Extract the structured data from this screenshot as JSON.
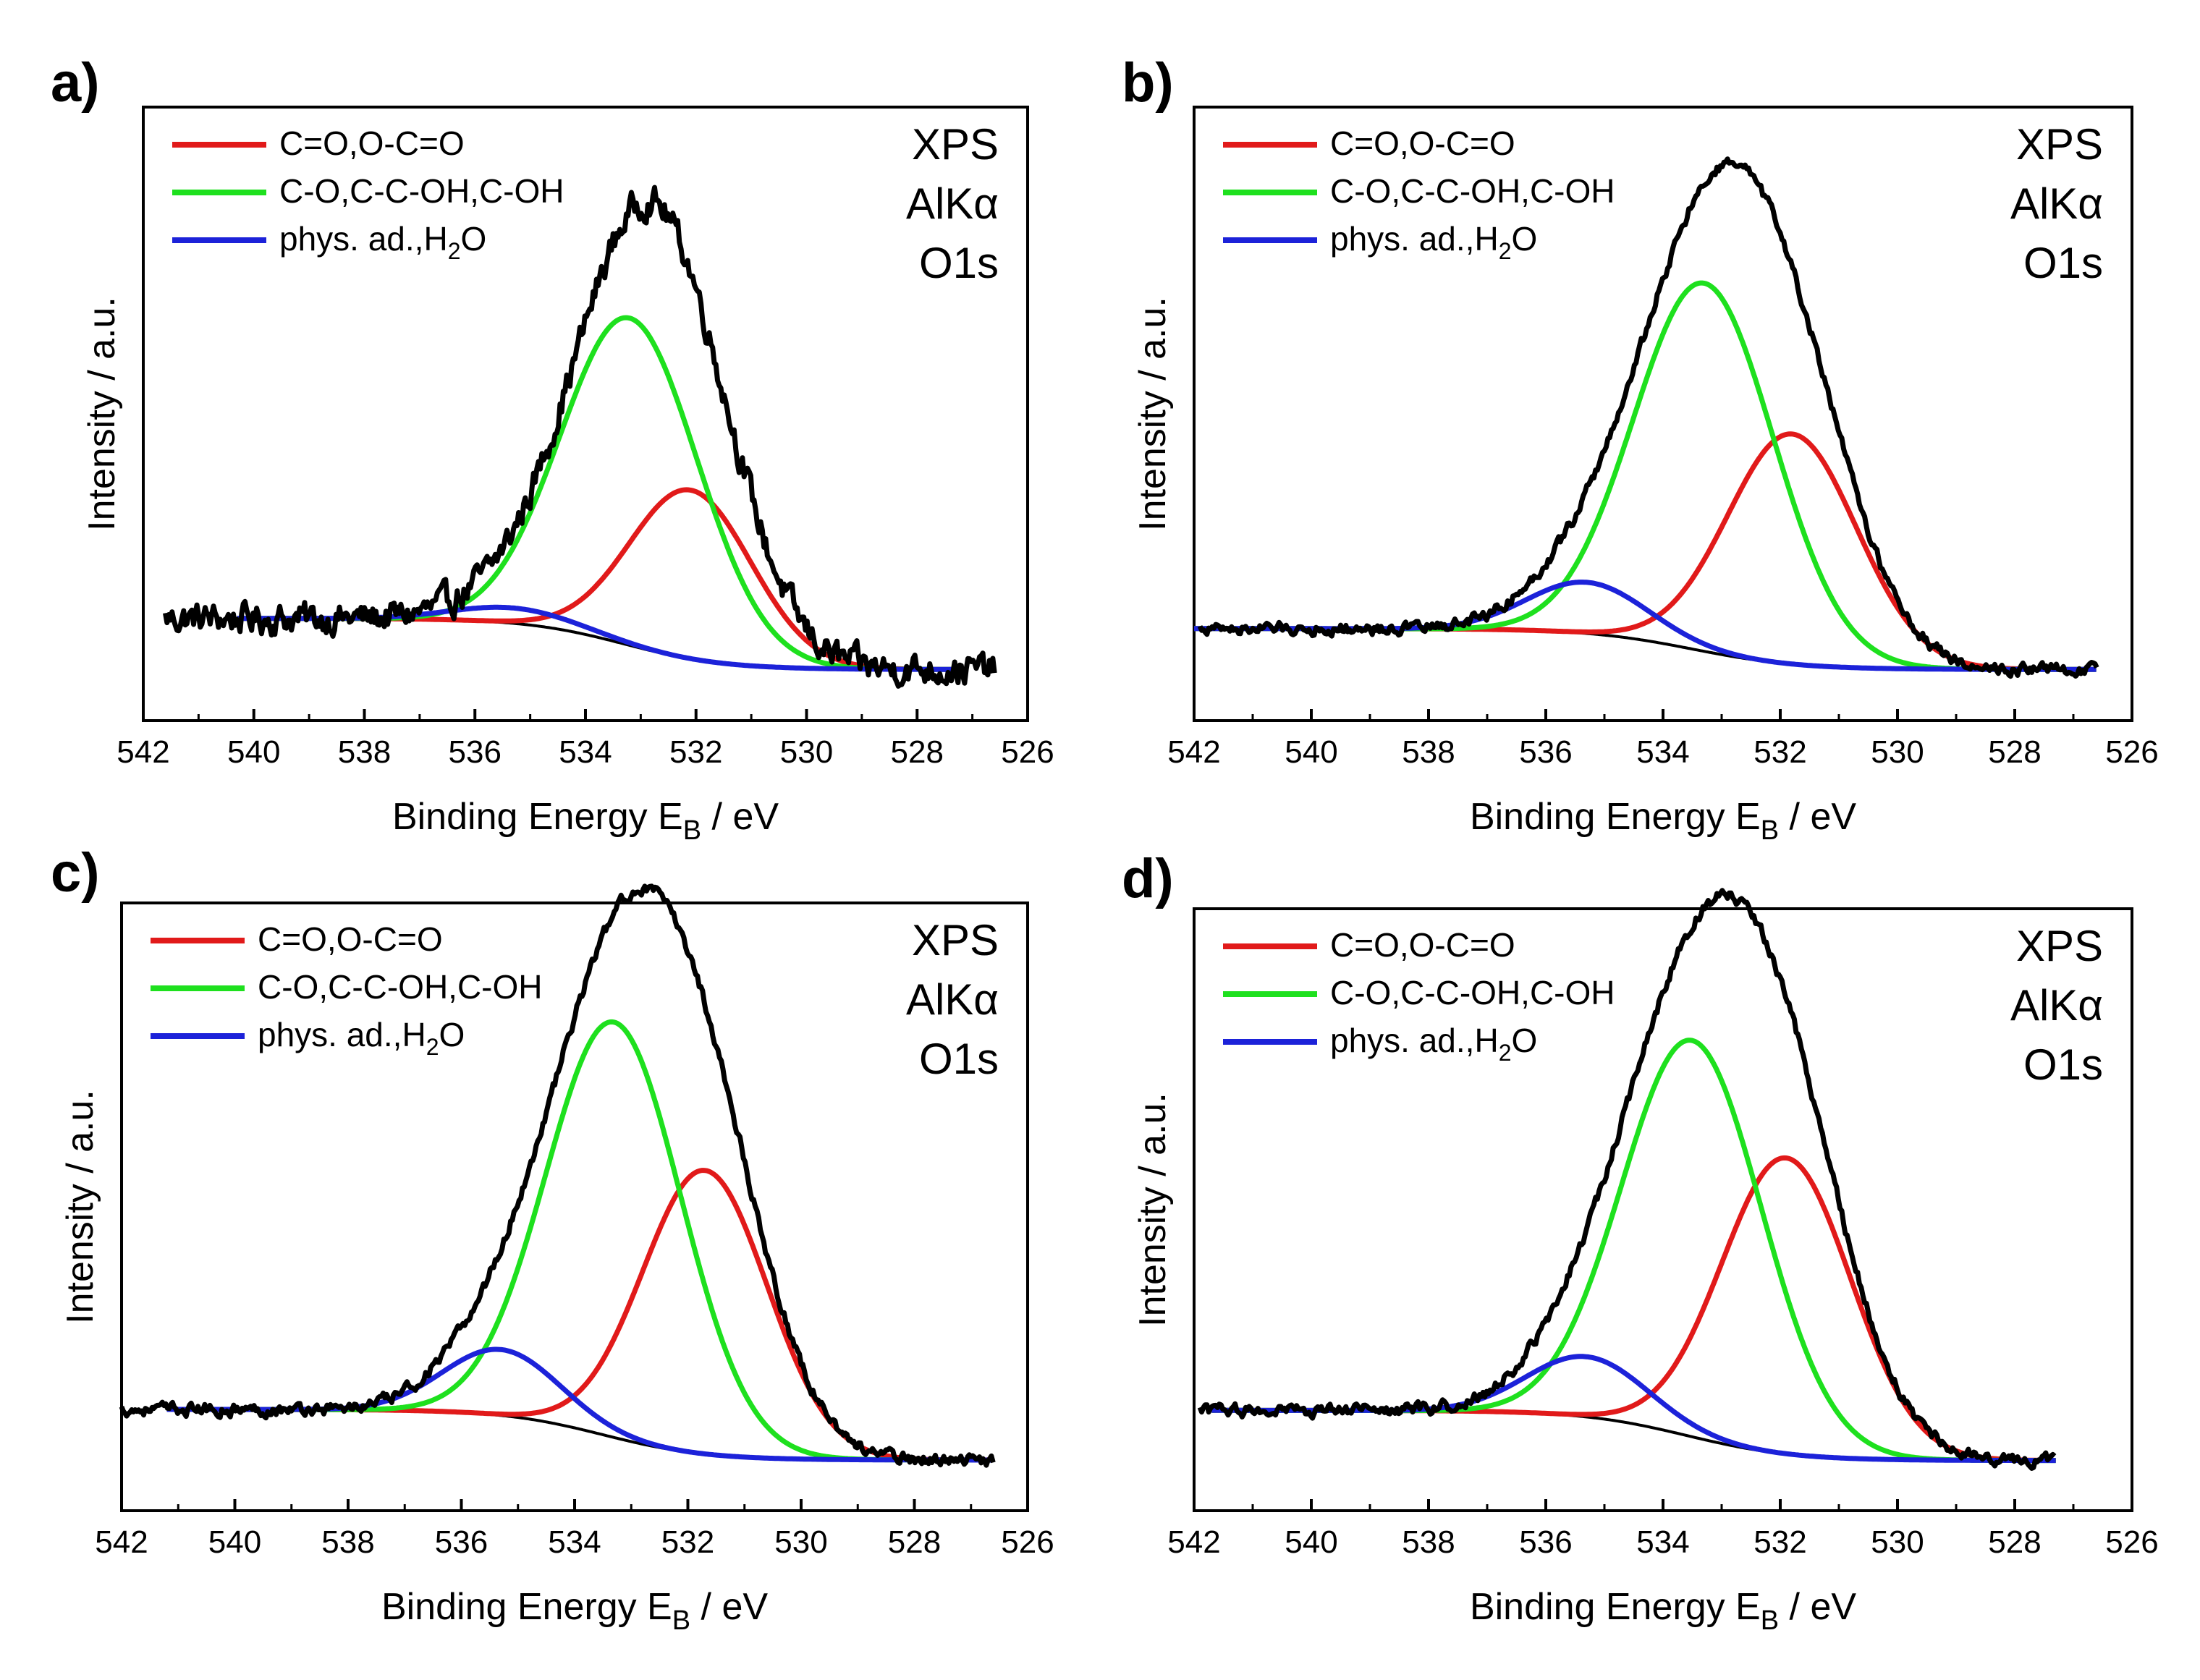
{
  "figure": {
    "xaxis_sub": "B",
    "colors": {
      "envelope": "#000000",
      "co_carbonyl": "#e11a1a",
      "co_hydroxyl": "#1ee01e",
      "water": "#1c22d9",
      "background": "#000000",
      "axes": "#000000"
    }
  },
  "chart_data": [
    {
      "panel": "a)",
      "type": "line",
      "xlabel_prefix": "Binding Energy E",
      "xlabel_suffix": " / eV",
      "ylabel": "Intensity / a.u.",
      "xlim": [
        542,
        526
      ],
      "xticks": [
        "542",
        "540",
        "538",
        "536",
        "534",
        "532",
        "530",
        "528",
        "526"
      ],
      "info_lines": [
        "XPS",
        "AlKα",
        "O1s"
      ],
      "legend": [
        {
          "name": "C=O,O-C=O",
          "color_key": "co_carbonyl"
        },
        {
          "name": "C-O,C-C-OH,C-OH",
          "color_key": "co_hydroxyl"
        },
        {
          "name_main": "phys. ad.,H",
          "name_sub": "2",
          "name_tail": "O",
          "color_key": "water"
        }
      ],
      "series": [
        {
          "name": "C=O,O-C=O",
          "center_eV": 532.1,
          "height": 0.33,
          "fwhm_eV": 2.6
        },
        {
          "name": "C-O,C-C-OH,C-OH",
          "center_eV": 533.2,
          "height": 0.64,
          "fwhm_eV": 2.9
        },
        {
          "name": "phys. ad.,H2O",
          "center_eV": 535.3,
          "height": 0.03,
          "fwhm_eV": 2.6
        }
      ],
      "background_curve": {
        "high_side_level": 0.1,
        "low_side_level": 0.0,
        "step_center_eV": 533.3
      },
      "data_range_eV": [
        541.6,
        526.6
      ],
      "fit_range_eV": [
        540.3,
        527.1
      ],
      "noise_level": 0.03,
      "ylim": [
        -0.1,
        1.1
      ]
    },
    {
      "panel": "b)",
      "type": "line",
      "xlabel_prefix": "Binding Energy E",
      "xlabel_suffix": " / eV",
      "ylabel": "Intensity / a.u.",
      "xlim": [
        542,
        526
      ],
      "xticks": [
        "542",
        "540",
        "538",
        "536",
        "534",
        "532",
        "530",
        "528",
        "526"
      ],
      "info_lines": [
        "XPS",
        "AlKα",
        "O1s"
      ],
      "legend": [
        {
          "name": "C=O,O-C=O",
          "color_key": "co_carbonyl"
        },
        {
          "name": "C-O,C-C-OH,C-OH",
          "color_key": "co_hydroxyl"
        },
        {
          "name_main": "phys. ad.,H",
          "name_sub": "2",
          "name_tail": "O",
          "color_key": "water"
        }
      ],
      "series": [
        {
          "name": "C=O,O-C=O",
          "center_eV": 531.8,
          "height": 0.45,
          "fwhm_eV": 2.6
        },
        {
          "name": "C-O,C-C-OH,C-OH",
          "center_eV": 533.3,
          "height": 0.72,
          "fwhm_eV": 2.8
        },
        {
          "name": "phys. ad.,H2O",
          "center_eV": 535.3,
          "height": 0.1,
          "fwhm_eV": 2.4
        }
      ],
      "background_curve": {
        "high_side_level": 0.08,
        "low_side_level": 0.0,
        "step_center_eV": 533.5
      },
      "data_range_eV": [
        541.9,
        526.6
      ],
      "fit_range_eV": [
        542.0,
        526.6
      ],
      "noise_level": 0.012,
      "ylim": [
        -0.1,
        1.1
      ]
    },
    {
      "panel": "c)",
      "type": "line",
      "xlabel_prefix": "Binding Energy E",
      "xlabel_suffix": " / eV",
      "ylabel": "Intensity / a.u.",
      "xlim": [
        542,
        526
      ],
      "xticks": [
        "542",
        "540",
        "538",
        "536",
        "534",
        "532",
        "530",
        "528",
        "526"
      ],
      "info_lines": [
        "XPS",
        "AlKα",
        "O1s"
      ],
      "legend": [
        {
          "name": "C=O,O-C=O",
          "color_key": "co_carbonyl"
        },
        {
          "name": "C-O,C-C-OH,C-OH",
          "color_key": "co_hydroxyl"
        },
        {
          "name_main": "phys. ad.,H",
          "name_sub": "2",
          "name_tail": "O",
          "color_key": "water"
        }
      ],
      "series": [
        {
          "name": "C=O,O-C=O",
          "center_eV": 531.7,
          "height": 0.56,
          "fwhm_eV": 2.6
        },
        {
          "name": "C-O,C-C-OH,C-OH",
          "center_eV": 533.3,
          "height": 0.82,
          "fwhm_eV": 2.8
        },
        {
          "name": "phys. ad.,H2O",
          "center_eV": 535.3,
          "height": 0.13,
          "fwhm_eV": 2.4
        }
      ],
      "background_curve": {
        "high_side_level": 0.1,
        "low_side_level": 0.0,
        "step_center_eV": 533.5
      },
      "data_range_eV": [
        542.0,
        526.6
      ],
      "fit_range_eV": [
        541.2,
        526.6
      ],
      "noise_level": 0.012,
      "ylim": [
        -0.1,
        1.1
      ]
    },
    {
      "panel": "d)",
      "type": "line",
      "xlabel_prefix": "Binding Energy E",
      "xlabel_suffix": " / eV",
      "ylabel": "Intensity / a.u.",
      "xlim": [
        542,
        526
      ],
      "xticks": [
        "542",
        "540",
        "538",
        "536",
        "534",
        "532",
        "530",
        "528",
        "526"
      ],
      "info_lines": [
        "XPS",
        "AlKα",
        "O1s"
      ],
      "legend": [
        {
          "name": "C=O,O-C=O",
          "color_key": "co_carbonyl"
        },
        {
          "name": "C-O,C-C-OH,C-OH",
          "color_key": "co_hydroxyl"
        },
        {
          "name_main": "phys. ad.,H",
          "name_sub": "2",
          "name_tail": "O",
          "color_key": "water"
        }
      ],
      "series": [
        {
          "name": "C=O,O-C=O",
          "center_eV": 531.9,
          "height": 0.59,
          "fwhm_eV": 2.6
        },
        {
          "name": "C-O,C-C-OH,C-OH",
          "center_eV": 533.5,
          "height": 0.79,
          "fwhm_eV": 2.8
        },
        {
          "name": "phys. ad.,H2O",
          "center_eV": 535.3,
          "height": 0.12,
          "fwhm_eV": 2.4
        }
      ],
      "background_curve": {
        "high_side_level": 0.1,
        "low_side_level": 0.0,
        "step_center_eV": 533.6
      },
      "data_range_eV": [
        541.9,
        527.3
      ],
      "fit_range_eV": [
        541.7,
        527.3
      ],
      "noise_level": 0.012,
      "ylim": [
        -0.1,
        1.1
      ]
    }
  ]
}
